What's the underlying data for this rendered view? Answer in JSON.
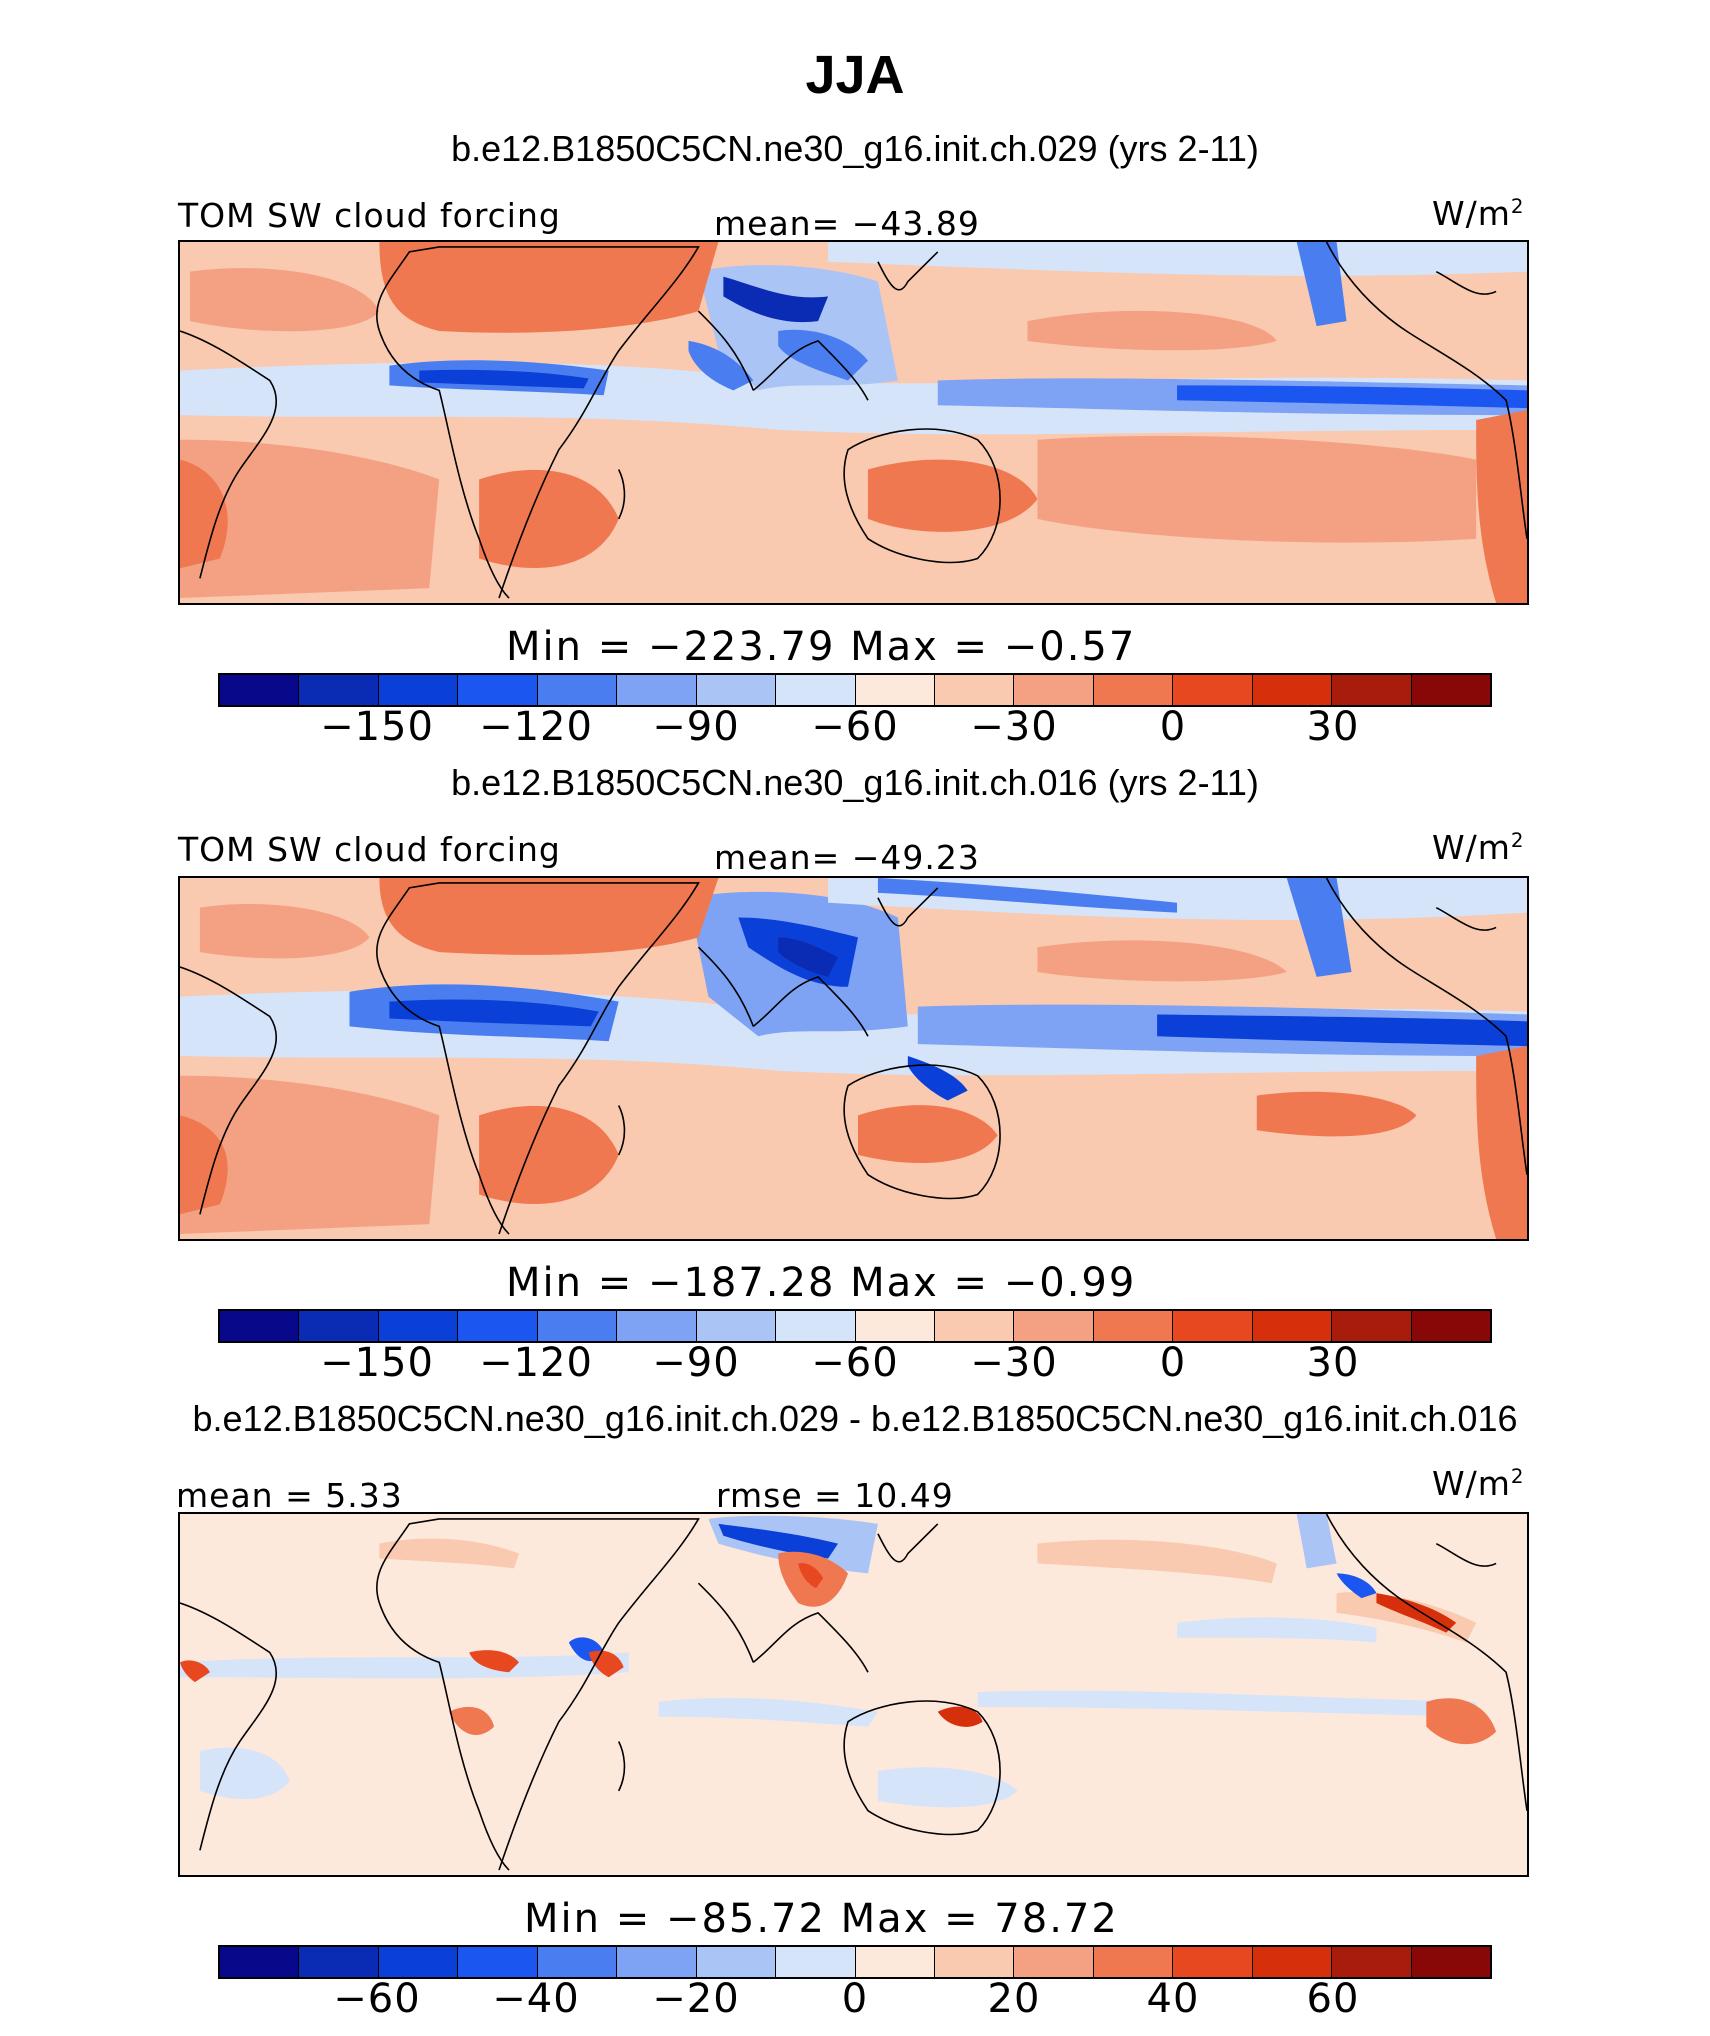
{
  "title": "JJA",
  "units": "W/m",
  "units_sup": "2",
  "palette": [
    "#08088a",
    "#0a2cb4",
    "#0b40d8",
    "#1c56f0",
    "#4a7ef0",
    "#7ea2f4",
    "#abc4f6",
    "#d6e4fa",
    "#fde8dc",
    "#f9c9b0",
    "#f4a183",
    "#f07850",
    "#e84820",
    "#d62f0c",
    "#a71c0a",
    "#880808"
  ],
  "panels": [
    {
      "subtitle": "b.e12.B1850C5CN.ne30_g16.init.ch.029 (yrs 2-11)",
      "left_label": "TOM SW cloud forcing",
      "center_label": "mean= −43.89",
      "minmax": "Min = −223.79 Max =  −0.57",
      "ticks": [
        "−150",
        "−120",
        "−90",
        "−60",
        "−30",
        "0",
        "30"
      ]
    },
    {
      "subtitle": "b.e12.B1850C5CN.ne30_g16.init.ch.016 (yrs 2-11)",
      "left_label": "TOM SW cloud forcing",
      "center_label": "mean= −49.23",
      "minmax": "Min = −187.28 Max =  −0.99",
      "ticks": [
        "−150",
        "−120",
        "−90",
        "−60",
        "−30",
        "0",
        "30"
      ]
    },
    {
      "subtitle": "b.e12.B1850C5CN.ne30_g16.init.ch.029 - b.e12.B1850C5CN.ne30_g16.init.ch.016",
      "left_label": "mean =   5.33",
      "center_label": "rmse =  10.49",
      "minmax": "Min = −85.72 Max =  78.72",
      "ticks": [
        "−60",
        "−40",
        "−20",
        "0",
        "20",
        "40",
        "60"
      ]
    }
  ]
}
